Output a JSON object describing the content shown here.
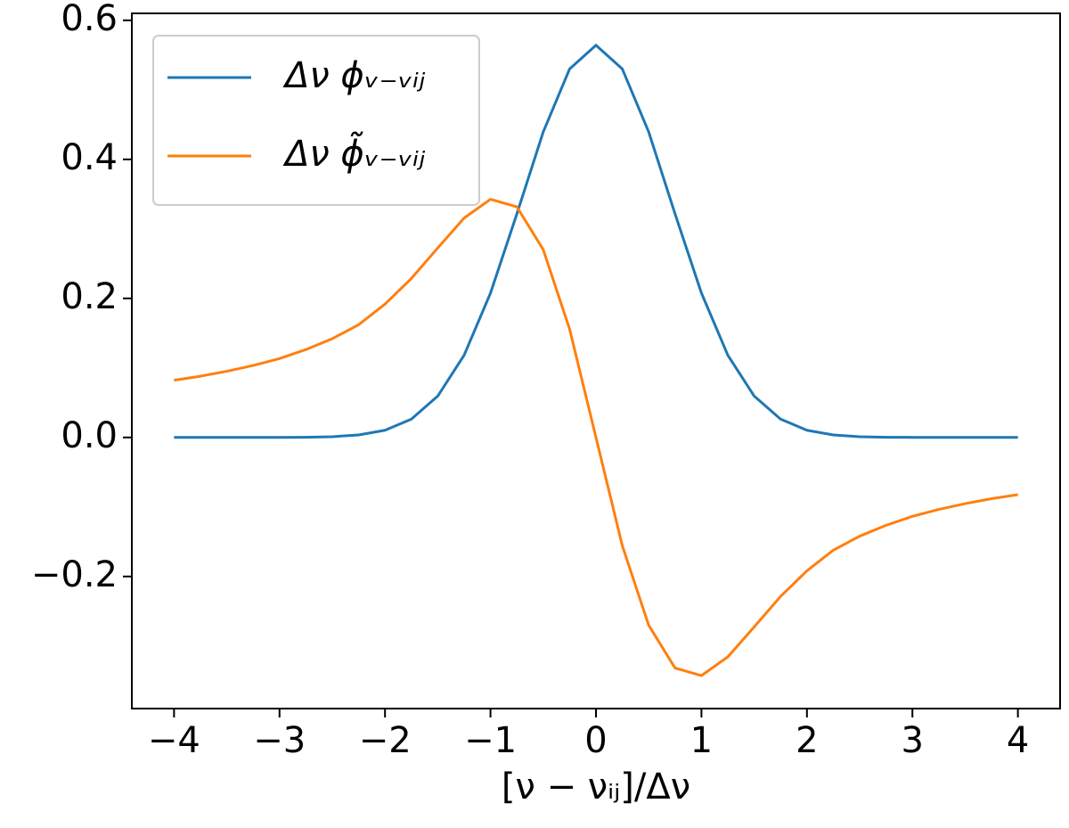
{
  "chart_data": {
    "type": "line",
    "xlabel": "[ν − νᵢⱼ]/Δν",
    "x": [
      -4,
      -3.75,
      -3.5,
      -3.25,
      -3,
      -2.75,
      -2.5,
      -2.25,
      -2,
      -1.75,
      -1.5,
      -1.25,
      -1,
      -0.75,
      -0.5,
      -0.25,
      0,
      0.25,
      0.5,
      0.75,
      1,
      1.25,
      1.5,
      1.75,
      2,
      2.25,
      2.5,
      2.75,
      3,
      3.25,
      3.5,
      3.75,
      4
    ],
    "series": [
      {
        "name": "Δν ϕᵥ₋ᵥᵢⱼ",
        "color": "#1f77b4",
        "values": [
          0,
          0,
          0,
          0,
          0.0001,
          0.0003,
          0.0011,
          0.0036,
          0.0103,
          0.0264,
          0.0595,
          0.1183,
          0.2076,
          0.3215,
          0.4394,
          0.53,
          0.5642,
          0.53,
          0.4394,
          0.3215,
          0.2076,
          0.1183,
          0.0595,
          0.0264,
          0.0103,
          0.0036,
          0.0011,
          0.0003,
          0.0001,
          0,
          0,
          0,
          0
        ]
      },
      {
        "name": "Δν ϕ̃ᵥ₋ᵥᵢⱼ",
        "color": "#ff7f0e",
        "values": [
          0.0823,
          0.0881,
          0.0952,
          0.1035,
          0.1135,
          0.1264,
          0.142,
          0.1622,
          0.1918,
          0.2287,
          0.2726,
          0.3156,
          0.3426,
          0.3317,
          0.2702,
          0.1559,
          0,
          -0.1559,
          -0.2702,
          -0.3317,
          -0.3426,
          -0.3156,
          -0.2726,
          -0.2287,
          -0.1918,
          -0.1622,
          -0.142,
          -0.1264,
          -0.1135,
          -0.1035,
          -0.0952,
          -0.0881,
          -0.0823
        ]
      }
    ],
    "xlim": [
      -4.4,
      4.4
    ],
    "ylim": [
      -0.39,
      0.61
    ],
    "xticks": [
      {
        "value": -4,
        "label": "−4"
      },
      {
        "value": -3,
        "label": "−3"
      },
      {
        "value": -2,
        "label": "−2"
      },
      {
        "value": -1,
        "label": "−1"
      },
      0,
      1,
      2,
      3,
      4
    ],
    "yticks": [
      {
        "value": -0.2,
        "label": "−0.2"
      },
      {
        "value": 0,
        "label": "0.0"
      },
      {
        "value": 0.2,
        "label": "0.2"
      },
      {
        "value": 0.4,
        "label": "0.4"
      },
      {
        "value": 0.6,
        "label": "0.6"
      }
    ],
    "legend": "upper left"
  }
}
